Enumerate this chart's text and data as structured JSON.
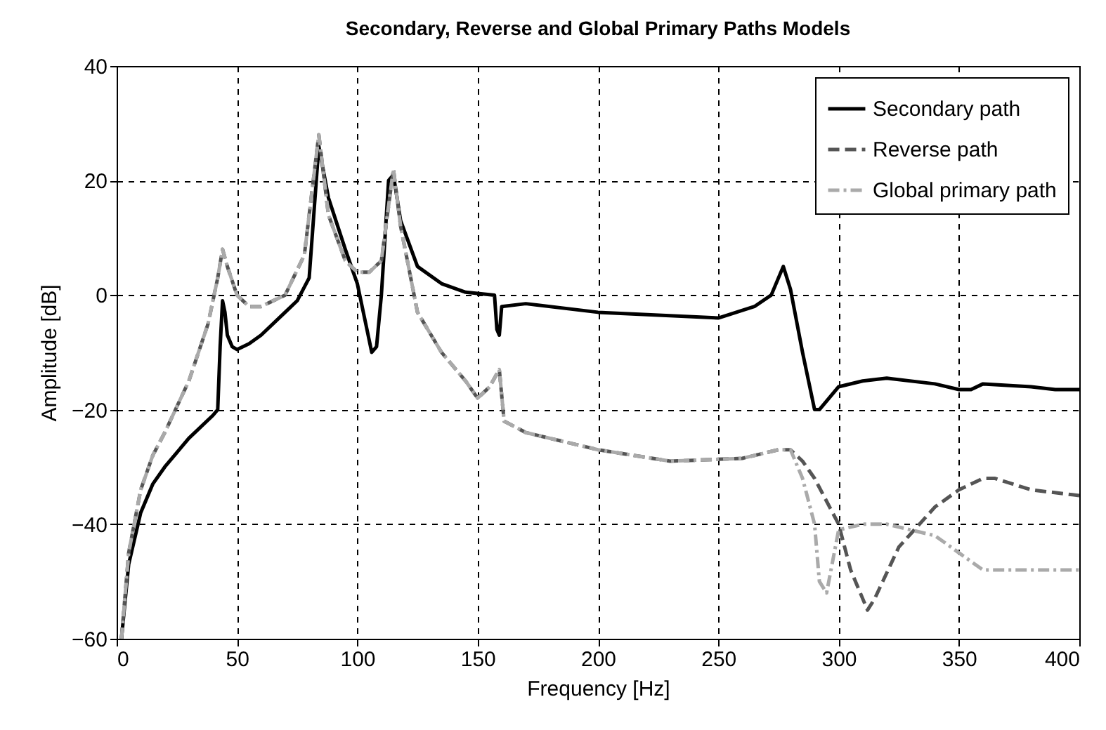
{
  "chart_data": {
    "type": "line",
    "title": "Secondary, Reverse and Global Primary Paths Models",
    "xlabel": "Frequency [Hz]",
    "ylabel": "Amplitude [dB]",
    "xlim": [
      0,
      400
    ],
    "xticks": [
      0,
      50,
      100,
      150,
      200,
      250,
      300,
      350,
      400
    ],
    "ylim": [
      -60,
      40
    ],
    "yticks": [
      -60,
      -40,
      -20,
      0,
      20,
      40
    ],
    "grid": true,
    "legend": "top right",
    "series": [
      {
        "name": "Secondary path",
        "color": "#000000",
        "line_style": "solid",
        "x": [
          2,
          5,
          10,
          15,
          20,
          30,
          40,
          42,
          43,
          44,
          45,
          46,
          48,
          50,
          55,
          60,
          70,
          75,
          80,
          84,
          88,
          95,
          100,
          104,
          106,
          108,
          110,
          113,
          115,
          118,
          125,
          135,
          145,
          157,
          158,
          159,
          160,
          170,
          200,
          250,
          265,
          272,
          277,
          280,
          285,
          290,
          292,
          300,
          310,
          320,
          340,
          350,
          355,
          360,
          380,
          390,
          400
        ],
        "values": [
          -60,
          -47,
          -38,
          -33,
          -30,
          -25,
          -21,
          -20,
          -9,
          -1,
          -3,
          -7,
          -9,
          -9.5,
          -8.5,
          -7,
          -3,
          -1,
          3,
          26,
          17,
          8,
          2,
          -6,
          -10,
          -9,
          0,
          20,
          21,
          13,
          5,
          2,
          0.5,
          0,
          -6,
          -7,
          -2,
          -1.5,
          -3,
          -4,
          -2,
          0,
          5,
          1,
          -10,
          -20,
          -20,
          -16,
          -15,
          -14.5,
          -15.5,
          -16.5,
          -16.5,
          -15.5,
          -16,
          -16.5,
          -16.5
        ]
      },
      {
        "name": "Reverse path",
        "color": "#555555",
        "line_style": "dashed",
        "x": [
          2,
          5,
          10,
          15,
          20,
          30,
          38,
          42,
          44,
          46,
          50,
          55,
          60,
          70,
          78,
          84,
          88,
          95,
          100,
          105,
          110,
          115,
          118,
          125,
          135,
          145,
          150,
          155,
          159,
          161,
          170,
          200,
          230,
          260,
          275,
          280,
          285,
          290,
          300,
          305,
          312,
          315,
          325,
          340,
          350,
          360,
          365,
          380,
          400
        ],
        "values": [
          -60,
          -45,
          -34,
          -28,
          -24,
          -15,
          -5,
          3,
          8,
          5,
          0,
          -2,
          -2,
          0,
          7,
          28,
          14,
          6,
          4,
          4,
          6,
          22,
          12,
          -3,
          -10,
          -15,
          -18,
          -16,
          -13,
          -22,
          -24,
          -27,
          -29,
          -28.5,
          -27,
          -27,
          -29,
          -32,
          -40,
          -48,
          -55,
          -53,
          -44,
          -37,
          -34,
          -32,
          -32,
          -34,
          -35
        ]
      },
      {
        "name": "Global primary path",
        "color": "#aaaaaa",
        "line_style": "dashdot",
        "x": [
          2,
          5,
          10,
          15,
          20,
          30,
          38,
          42,
          44,
          46,
          50,
          55,
          60,
          70,
          78,
          84,
          88,
          95,
          100,
          105,
          110,
          115,
          118,
          125,
          135,
          145,
          150,
          155,
          159,
          161,
          170,
          200,
          230,
          260,
          275,
          280,
          285,
          290,
          292,
          295,
          300,
          310,
          320,
          340,
          350,
          360,
          370,
          400
        ],
        "values": [
          -60,
          -45,
          -34,
          -28,
          -24,
          -15,
          -5,
          3,
          8,
          5,
          0,
          -2,
          -2,
          0,
          7,
          28,
          14,
          6,
          4,
          4,
          6,
          22,
          12,
          -3,
          -10,
          -15,
          -18,
          -16,
          -13,
          -22,
          -24,
          -27,
          -29,
          -28.5,
          -27,
          -27,
          -32,
          -40,
          -50,
          -52,
          -41,
          -40,
          -40,
          -42,
          -45,
          -48,
          -48,
          -48
        ]
      }
    ]
  }
}
